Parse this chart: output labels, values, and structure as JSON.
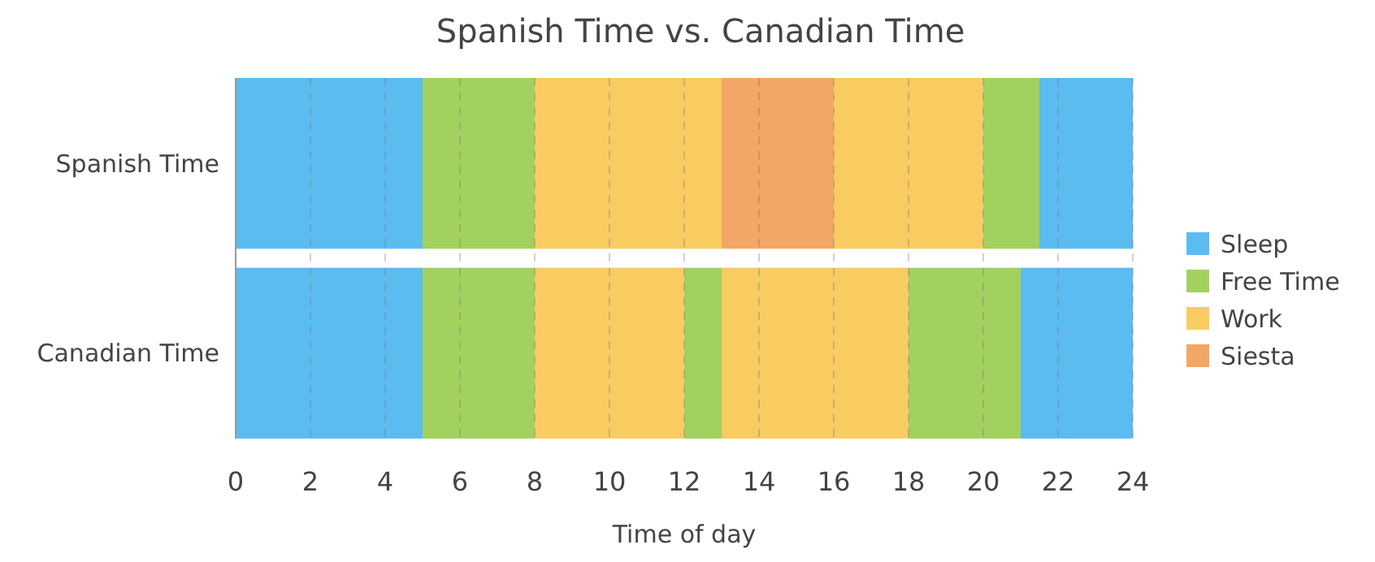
{
  "chart_data": {
    "type": "bar",
    "orientation": "horizontal",
    "title": "Spanish Time vs. Canadian Time",
    "xlabel": "Time of day",
    "categories": [
      "Spanish Time",
      "Canadian Time"
    ],
    "series": [
      {
        "name": "Sleep",
        "color": "#5bbcf0",
        "values": [
          5,
          5
        ],
        "base": [
          0,
          0
        ]
      },
      {
        "name": "Free Time",
        "color": "#a3d160",
        "values": [
          3,
          3
        ],
        "base": [
          5,
          5
        ]
      },
      {
        "name": "Work",
        "color": "#f9cc62",
        "values": [
          5,
          4
        ],
        "base": [
          8,
          8
        ]
      },
      {
        "name": "Siesta",
        "color": "#f2a766",
        "values": [
          3,
          null
        ],
        "base": [
          13,
          null
        ]
      },
      {
        "color": "#a3d160",
        "values": [
          null,
          1
        ],
        "base": [
          null,
          12
        ]
      },
      {
        "color": "#f9cc62",
        "values": [
          4,
          5
        ],
        "base": [
          16,
          13
        ]
      },
      {
        "color": "#a3d160",
        "values": [
          1.5,
          3
        ],
        "base": [
          20,
          18
        ]
      },
      {
        "color": "#5bbcf0",
        "values": [
          2.5,
          3
        ],
        "base": [
          21.5,
          21
        ]
      }
    ],
    "xlim": [
      0,
      24
    ],
    "xticks": [
      0,
      2,
      4,
      6,
      8,
      10,
      12,
      14,
      16,
      18,
      20,
      22,
      24
    ],
    "grid": "x",
    "legend": "right"
  }
}
